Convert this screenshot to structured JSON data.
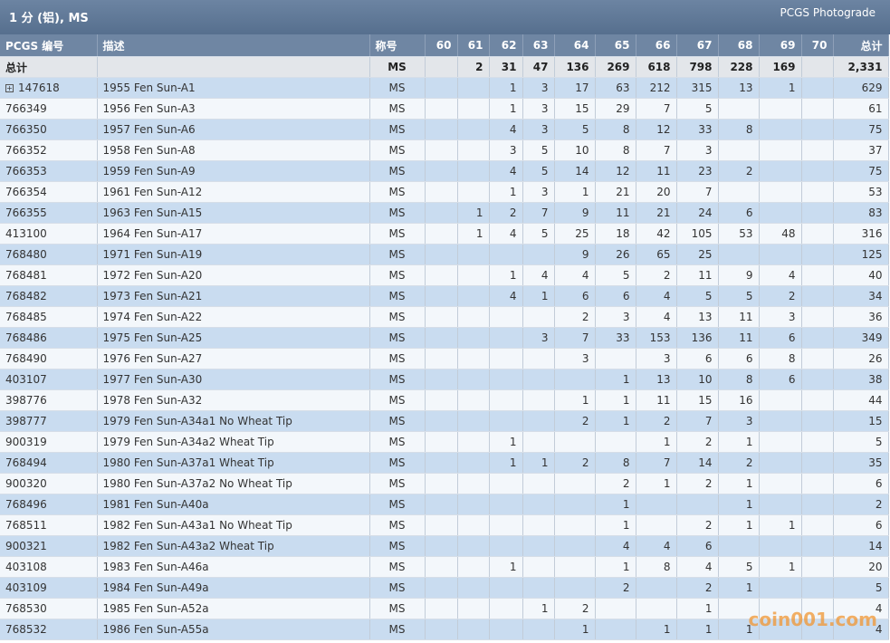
{
  "header": {
    "title": "1 分 (铝), MS",
    "link": "PCGS Photograde"
  },
  "table": {
    "columns": [
      "PCGS 编号",
      "描述",
      "称号",
      "60",
      "61",
      "62",
      "63",
      "64",
      "65",
      "66",
      "67",
      "68",
      "69",
      "70",
      "总计"
    ],
    "total_row": {
      "label": "总计",
      "designation": "MS",
      "grades": [
        null,
        2,
        31,
        47,
        136,
        269,
        618,
        798,
        228,
        169,
        null
      ],
      "total": "2,331"
    },
    "rows": [
      {
        "id": "147618",
        "description": "1955 Fen Sun-A1",
        "designation": "MS",
        "grades": [
          null,
          null,
          1,
          3,
          17,
          63,
          212,
          315,
          13,
          1,
          null
        ],
        "total": 629
      },
      {
        "id": "766349",
        "description": "1956 Fen Sun-A3",
        "designation": "MS",
        "grades": [
          null,
          null,
          1,
          3,
          15,
          29,
          7,
          5,
          null,
          null,
          null
        ],
        "total": 61
      },
      {
        "id": "766350",
        "description": "1957 Fen Sun-A6",
        "designation": "MS",
        "grades": [
          null,
          null,
          4,
          3,
          5,
          8,
          12,
          33,
          8,
          null,
          null
        ],
        "total": 75
      },
      {
        "id": "766352",
        "description": "1958 Fen Sun-A8",
        "designation": "MS",
        "grades": [
          null,
          null,
          3,
          5,
          10,
          8,
          7,
          3,
          null,
          null,
          null
        ],
        "total": 37
      },
      {
        "id": "766353",
        "description": "1959 Fen Sun-A9",
        "designation": "MS",
        "grades": [
          null,
          null,
          4,
          5,
          14,
          12,
          11,
          23,
          2,
          null,
          null
        ],
        "total": 75
      },
      {
        "id": "766354",
        "description": "1961 Fen Sun-A12",
        "designation": "MS",
        "grades": [
          null,
          null,
          1,
          3,
          1,
          21,
          20,
          7,
          null,
          null,
          null
        ],
        "total": 53
      },
      {
        "id": "766355",
        "description": "1963 Fen Sun-A15",
        "designation": "MS",
        "grades": [
          null,
          1,
          2,
          7,
          9,
          11,
          21,
          24,
          6,
          null,
          null
        ],
        "total": 83
      },
      {
        "id": "413100",
        "description": "1964 Fen Sun-A17",
        "designation": "MS",
        "grades": [
          null,
          1,
          4,
          5,
          25,
          18,
          42,
          105,
          53,
          48,
          null
        ],
        "total": 316
      },
      {
        "id": "768480",
        "description": "1971 Fen Sun-A19",
        "designation": "MS",
        "grades": [
          null,
          null,
          null,
          null,
          9,
          26,
          65,
          25,
          null,
          null,
          null
        ],
        "total": 125
      },
      {
        "id": "768481",
        "description": "1972 Fen Sun-A20",
        "designation": "MS",
        "grades": [
          null,
          null,
          1,
          4,
          4,
          5,
          2,
          11,
          9,
          4,
          null
        ],
        "total": 40
      },
      {
        "id": "768482",
        "description": "1973 Fen Sun-A21",
        "designation": "MS",
        "grades": [
          null,
          null,
          4,
          1,
          6,
          6,
          4,
          5,
          5,
          2,
          null
        ],
        "total": 34
      },
      {
        "id": "768485",
        "description": "1974 Fen Sun-A22",
        "designation": "MS",
        "grades": [
          null,
          null,
          null,
          null,
          2,
          3,
          4,
          13,
          11,
          3,
          null
        ],
        "total": 36
      },
      {
        "id": "768486",
        "description": "1975 Fen Sun-A25",
        "designation": "MS",
        "grades": [
          null,
          null,
          null,
          3,
          7,
          33,
          153,
          136,
          11,
          6,
          null
        ],
        "total": 349
      },
      {
        "id": "768490",
        "description": "1976 Fen Sun-A27",
        "designation": "MS",
        "grades": [
          null,
          null,
          null,
          null,
          3,
          null,
          3,
          6,
          6,
          8,
          null
        ],
        "total": 26
      },
      {
        "id": "403107",
        "description": "1977 Fen Sun-A30",
        "designation": "MS",
        "grades": [
          null,
          null,
          null,
          null,
          null,
          1,
          13,
          10,
          8,
          6,
          null
        ],
        "total": 38
      },
      {
        "id": "398776",
        "description": "1978 Fen Sun-A32",
        "designation": "MS",
        "grades": [
          null,
          null,
          null,
          null,
          1,
          1,
          11,
          15,
          16,
          null,
          null
        ],
        "total": 44
      },
      {
        "id": "398777",
        "description": "1979 Fen Sun-A34a1 No Wheat Tip",
        "designation": "MS",
        "grades": [
          null,
          null,
          null,
          null,
          2,
          1,
          2,
          7,
          3,
          null,
          null
        ],
        "total": 15
      },
      {
        "id": "900319",
        "description": "1979 Fen Sun-A34a2 Wheat Tip",
        "designation": "MS",
        "grades": [
          null,
          null,
          1,
          null,
          null,
          null,
          1,
          2,
          1,
          null,
          null
        ],
        "total": 5
      },
      {
        "id": "768494",
        "description": "1980 Fen Sun-A37a1 Wheat Tip",
        "designation": "MS",
        "grades": [
          null,
          null,
          1,
          1,
          2,
          8,
          7,
          14,
          2,
          null,
          null
        ],
        "total": 35
      },
      {
        "id": "900320",
        "description": "1980 Fen Sun-A37a2 No Wheat Tip",
        "designation": "MS",
        "grades": [
          null,
          null,
          null,
          null,
          null,
          2,
          1,
          2,
          1,
          null,
          null
        ],
        "total": 6
      },
      {
        "id": "768496",
        "description": "1981 Fen Sun-A40a",
        "designation": "MS",
        "grades": [
          null,
          null,
          null,
          null,
          null,
          1,
          null,
          null,
          1,
          null,
          null
        ],
        "total": 2
      },
      {
        "id": "768511",
        "description": "1982 Fen Sun-A43a1 No Wheat Tip",
        "designation": "MS",
        "grades": [
          null,
          null,
          null,
          null,
          null,
          1,
          null,
          2,
          1,
          1,
          null
        ],
        "total": 6
      },
      {
        "id": "900321",
        "description": "1982 Fen Sun-A43a2 Wheat Tip",
        "designation": "MS",
        "grades": [
          null,
          null,
          null,
          null,
          null,
          4,
          4,
          6,
          null,
          null,
          null
        ],
        "total": 14
      },
      {
        "id": "403108",
        "description": "1983 Fen Sun-A46a",
        "designation": "MS",
        "grades": [
          null,
          null,
          1,
          null,
          null,
          1,
          8,
          4,
          5,
          1,
          null
        ],
        "total": 20
      },
      {
        "id": "403109",
        "description": "1984 Fen Sun-A49a",
        "designation": "MS",
        "grades": [
          null,
          null,
          null,
          null,
          null,
          2,
          null,
          2,
          1,
          null,
          null
        ],
        "total": 5
      },
      {
        "id": "768530",
        "description": "1985 Fen Sun-A52a",
        "designation": "MS",
        "grades": [
          null,
          null,
          null,
          1,
          2,
          null,
          null,
          1,
          null,
          null,
          null
        ],
        "total": 4
      },
      {
        "id": "768532",
        "description": "1986 Fen Sun-A55a",
        "designation": "MS",
        "grades": [
          null,
          null,
          null,
          null,
          1,
          null,
          1,
          1,
          1,
          null,
          null
        ],
        "total": 4
      }
    ]
  },
  "watermark": "coin001.com"
}
